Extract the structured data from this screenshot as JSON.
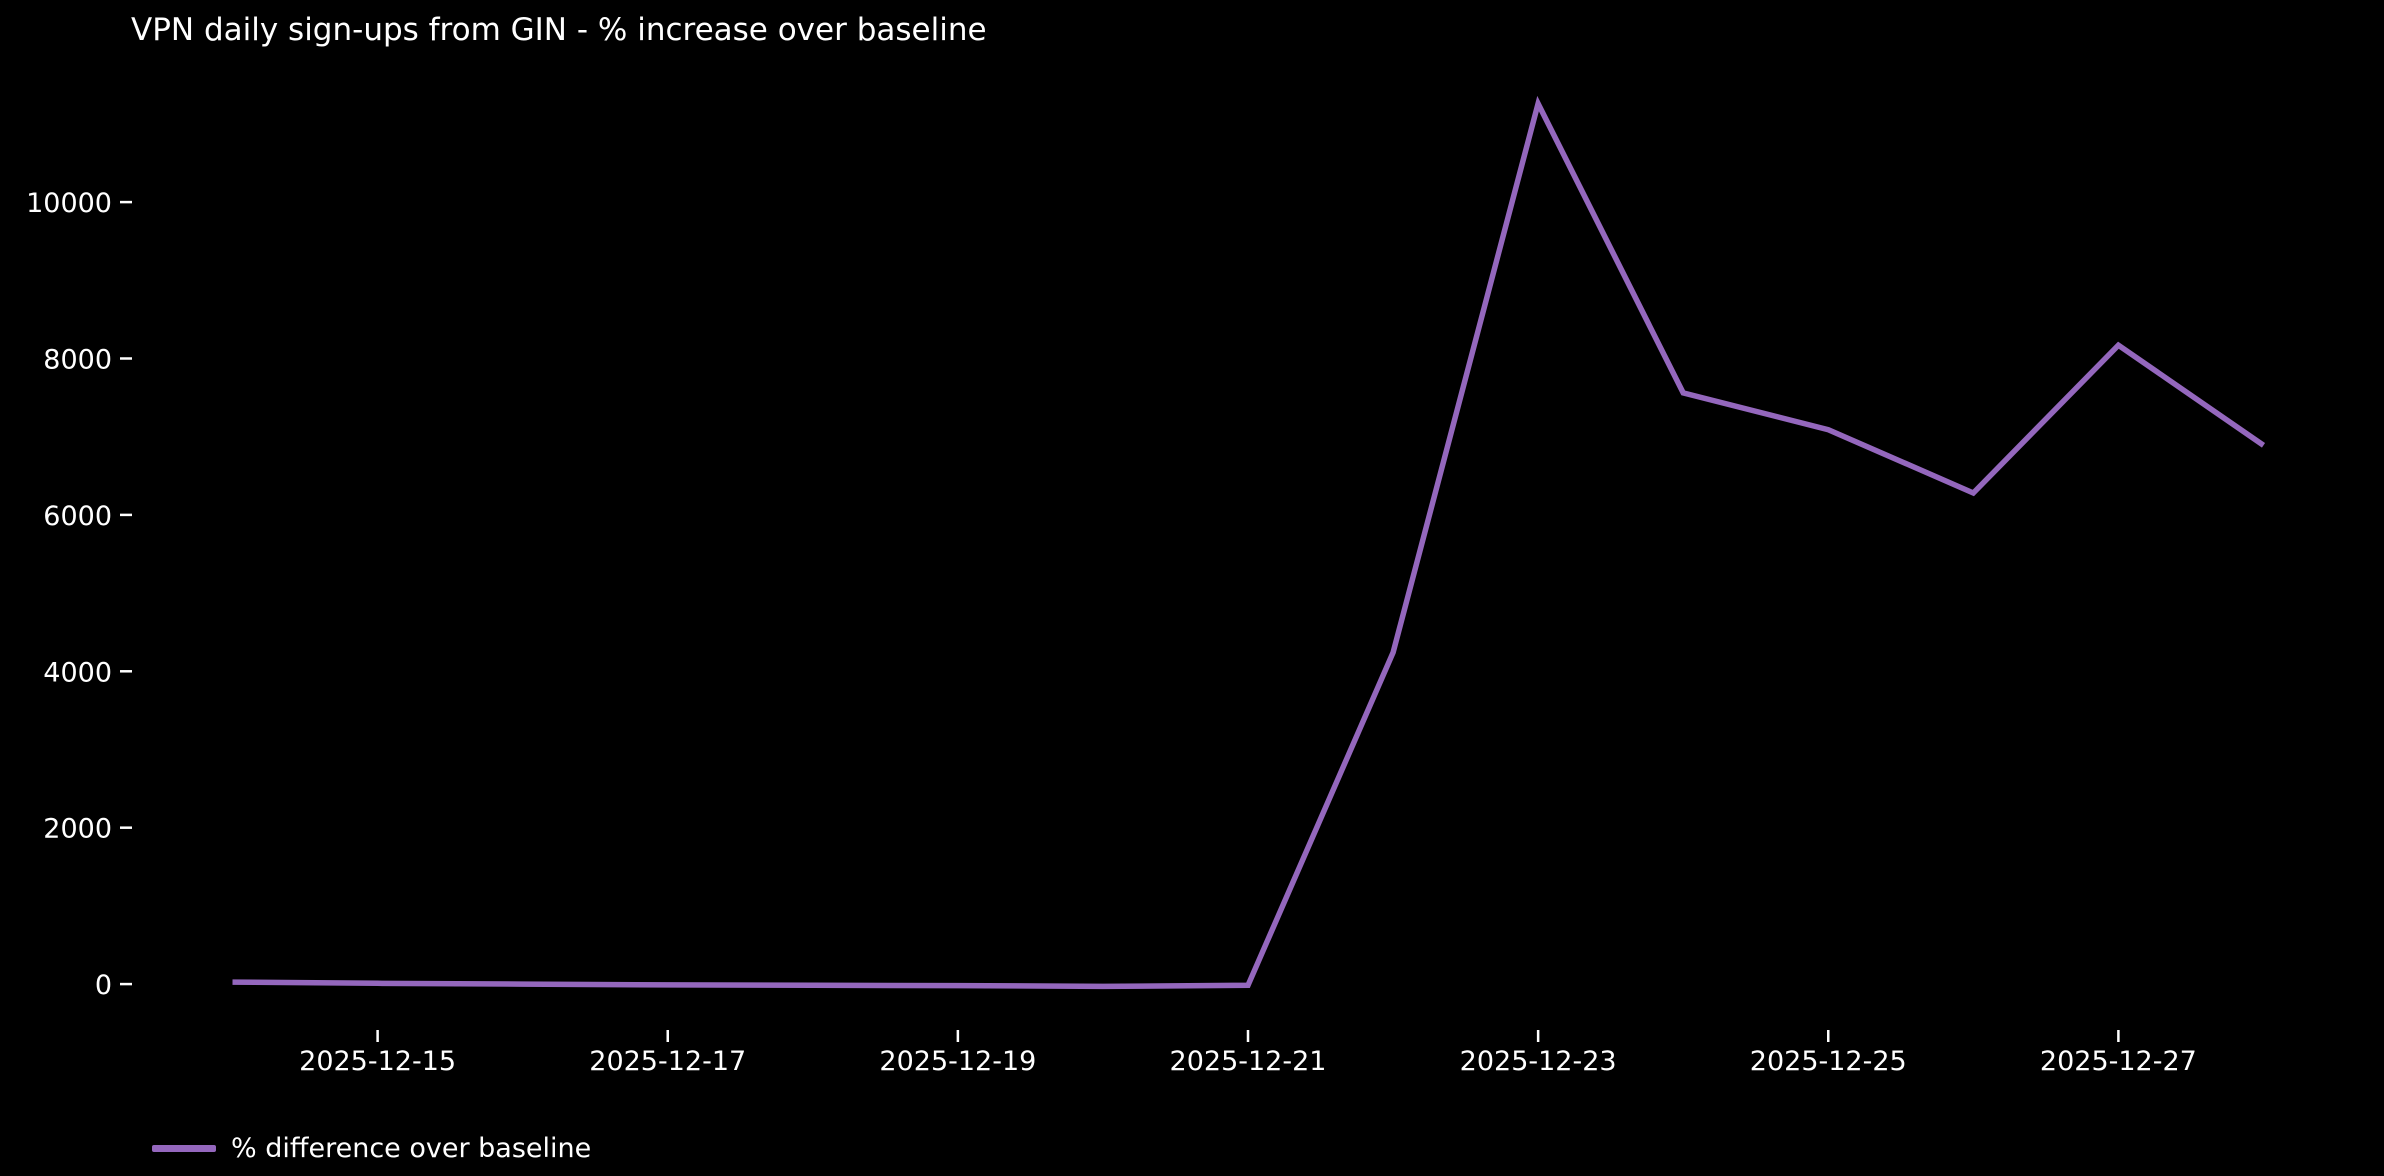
{
  "chart_data": {
    "type": "line",
    "title": "VPN daily sign-ups from GIN - % increase over baseline",
    "x": [
      "2025-12-14",
      "2025-12-15",
      "2025-12-16",
      "2025-12-17",
      "2025-12-18",
      "2025-12-19",
      "2025-12-20",
      "2025-12-21",
      "2025-12-22",
      "2025-12-23",
      "2025-12-24",
      "2025-12-25",
      "2025-12-26",
      "2025-12-27",
      "2025-12-28"
    ],
    "series": [
      {
        "name": "% difference over baseline",
        "color": "#9467bd",
        "values": [
          25,
          10,
          0,
          -10,
          -15,
          -20,
          -30,
          -15,
          4240,
          11260,
          7560,
          7090,
          6280,
          8170,
          6890
        ]
      }
    ],
    "xtick_labels": [
      "2025-12-15",
      "2025-12-17",
      "2025-12-19",
      "2025-12-21",
      "2025-12-23",
      "2025-12-25",
      "2025-12-27"
    ],
    "ytick_values": [
      0,
      2000,
      4000,
      6000,
      8000,
      10000
    ],
    "ylim": [
      -600,
      11830
    ],
    "xlabel": "",
    "ylabel": "",
    "grid": false,
    "legend": {
      "position": "lower-left",
      "entries": [
        "% difference over baseline"
      ]
    },
    "colors": {
      "background": "#000000",
      "text": "#ffffff",
      "line": "#9467bd"
    }
  }
}
